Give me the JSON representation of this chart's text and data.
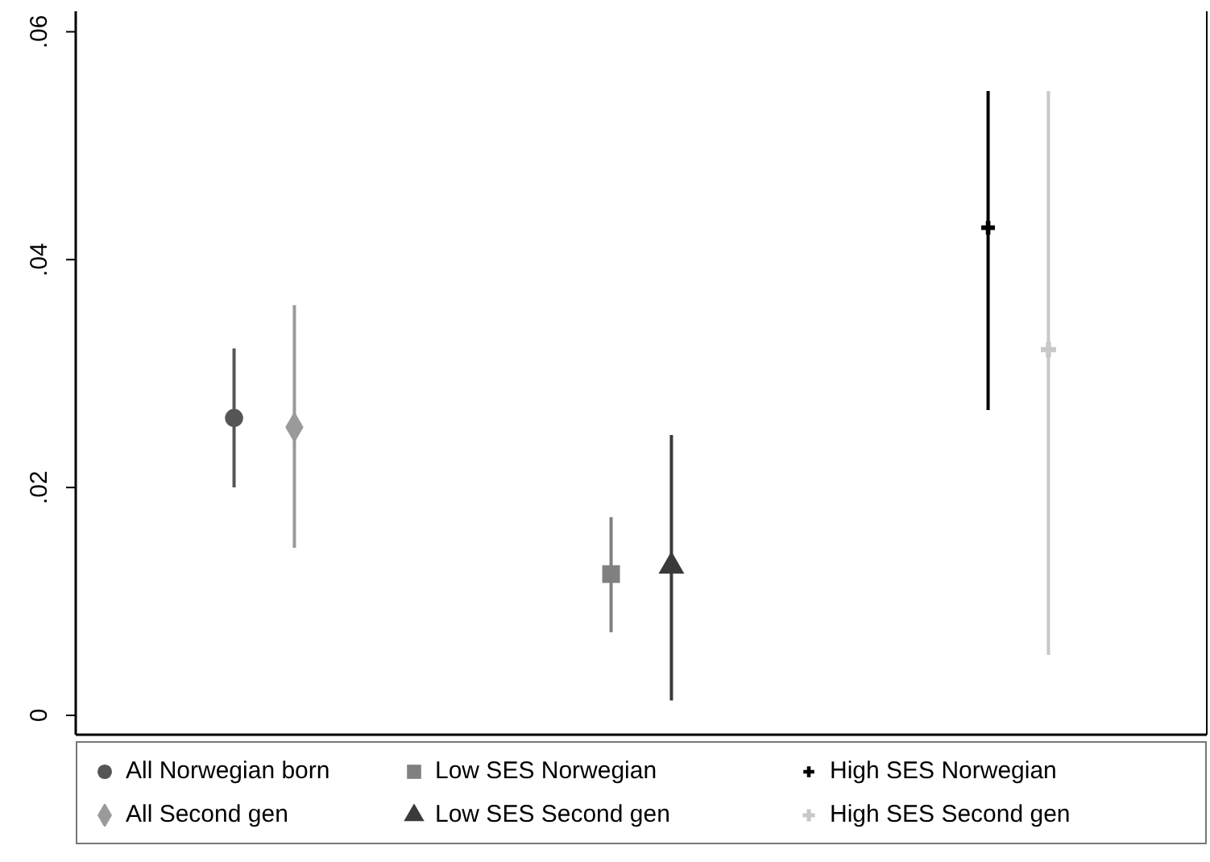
{
  "chart_data": {
    "type": "scatter",
    "categories": [
      null,
      null,
      null
    ],
    "ylim": [
      -0.0017,
      0.0618
    ],
    "yticks": [
      {
        "value": 0,
        "label": "0"
      },
      {
        "value": 0.02,
        "label": ".02"
      },
      {
        "value": 0.04,
        "label": ".04"
      },
      {
        "value": 0.06,
        "label": ".06"
      }
    ],
    "tick_labels": "y",
    "legend": "bottom",
    "series": [
      {
        "name": "All Norwegian born",
        "color": "#555555",
        "marker": "circle",
        "values": [
          0.0261,
          null,
          null
        ],
        "errors": [
          [
            0.02,
            0.0322
          ],
          null,
          null
        ]
      },
      {
        "name": "All Second gen",
        "color": "#9a9a9a",
        "marker": "diamond",
        "values": [
          0.0253,
          null,
          null
        ],
        "errors": [
          [
            0.0147,
            0.036
          ],
          null,
          null
        ]
      },
      {
        "name": "Low SES Norwegian",
        "color": "#808080",
        "marker": "square",
        "values": [
          null,
          0.0124,
          null
        ],
        "errors": [
          null,
          [
            0.0073,
            0.0174
          ],
          null
        ]
      },
      {
        "name": "Low SES Second gen",
        "color": "#3a3a3a",
        "marker": "triangle",
        "values": [
          null,
          0.0131,
          null
        ],
        "errors": [
          null,
          [
            0.0013,
            0.0246
          ],
          null
        ]
      },
      {
        "name": "High SES Norwegian",
        "color": "#000000",
        "marker": "cross",
        "values": [
          null,
          null,
          0.0428
        ],
        "errors": [
          null,
          null,
          [
            0.0268,
            0.0548
          ]
        ]
      },
      {
        "name": "High SES Second gen",
        "color": "#c8c8c8",
        "marker": "plus",
        "values": [
          null,
          null,
          0.0321
        ],
        "errors": [
          null,
          null,
          [
            0.0053,
            0.0548
          ]
        ]
      }
    ]
  }
}
